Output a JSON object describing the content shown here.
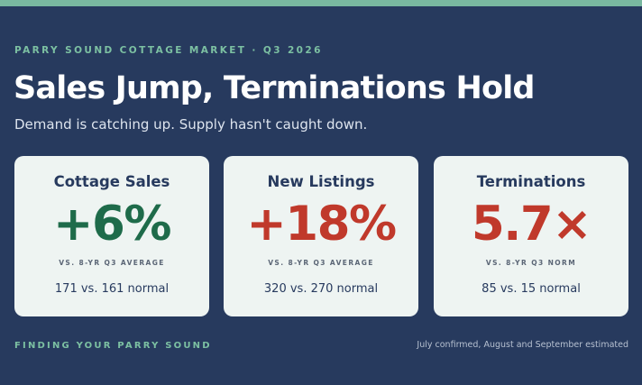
{
  "header": {
    "eyebrow": "PARRY SOUND COTTAGE MARKET · Q3 2026",
    "title": "Sales Jump, Terminations Hold",
    "subtitle": "Demand is catching up. Supply hasn't caught down."
  },
  "cards": [
    {
      "title": "Cottage Sales",
      "value": "+6%",
      "value_color": "#1e6b4a",
      "caption": "VS. 8-YR Q3 AVERAGE",
      "detail": "171 vs. 161 normal"
    },
    {
      "title": "New Listings",
      "value": "+18%",
      "value_color": "#c0392b",
      "caption": "VS. 8-YR Q3 AVERAGE",
      "detail": "320 vs. 270 normal"
    },
    {
      "title": "Terminations",
      "value": "5.7×",
      "value_color": "#c0392b",
      "caption": "VS. 8-YR Q3 NORM",
      "detail": "85 vs. 15 normal"
    }
  ],
  "footer": {
    "brand": "FINDING YOUR PARRY SOUND",
    "note": "July confirmed, August and September estimated"
  },
  "colors": {
    "background": "#273a5e",
    "accent": "#7cc0a2",
    "positive": "#1e6b4a",
    "negative": "#c0392b"
  }
}
